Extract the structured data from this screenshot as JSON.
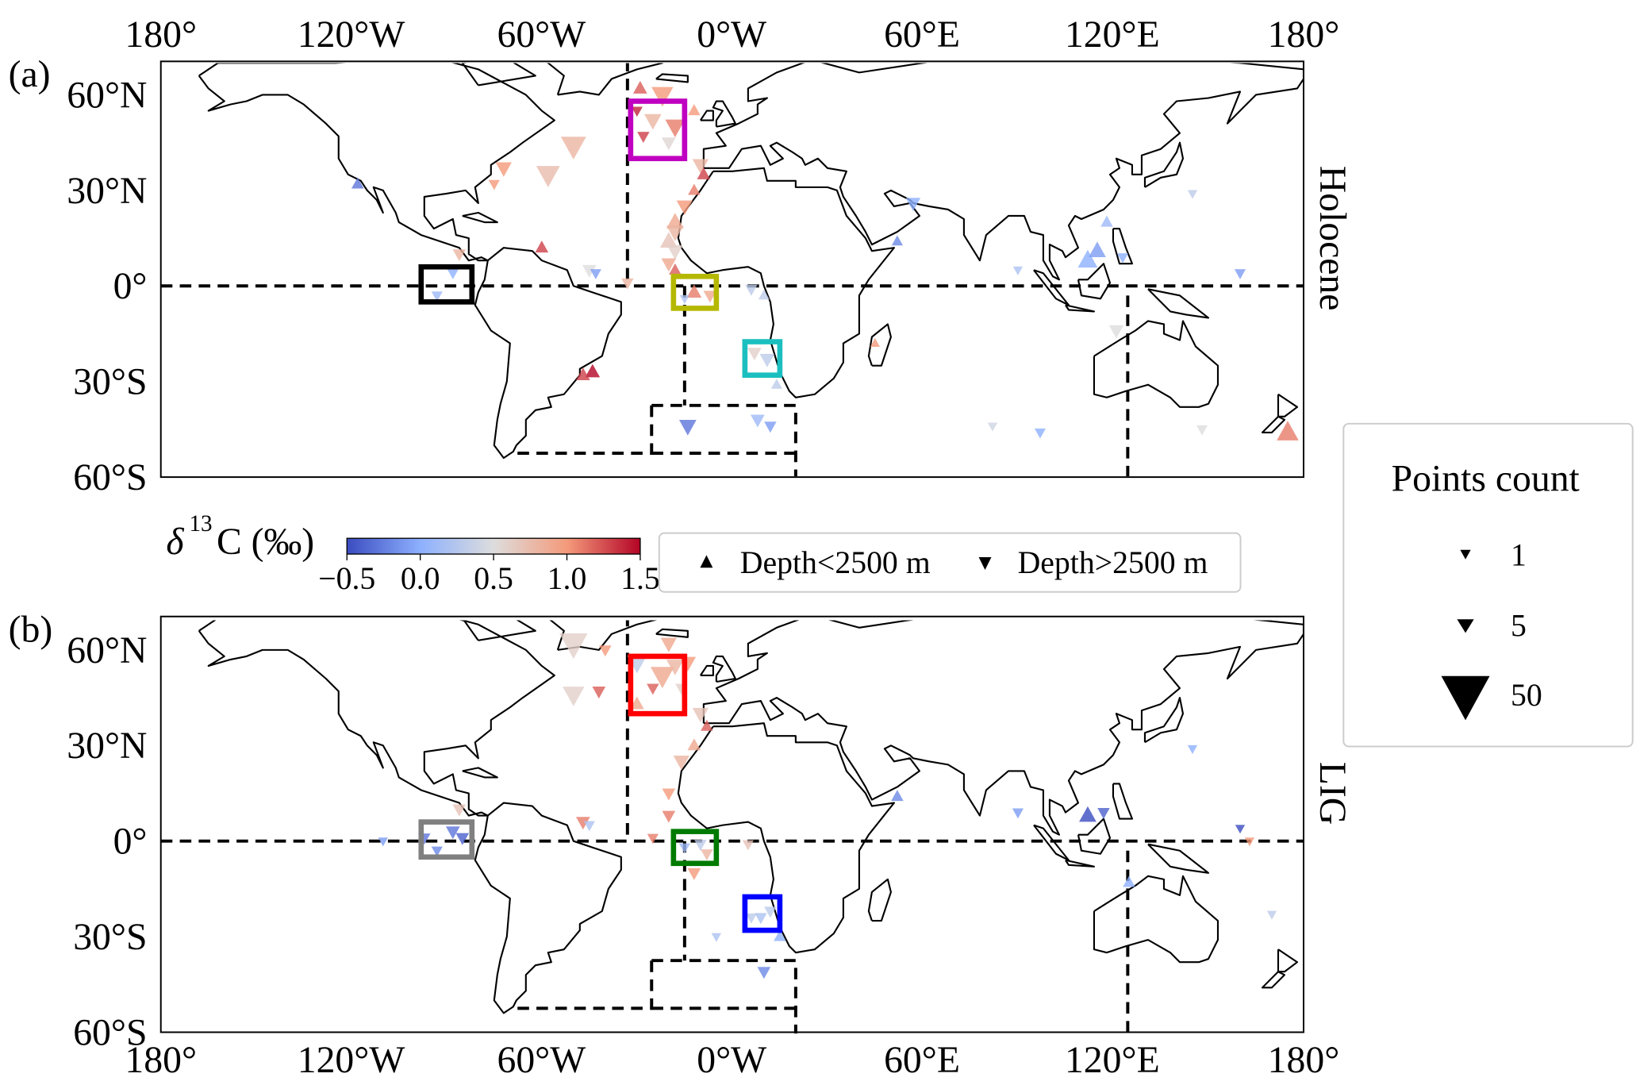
{
  "chart_data": [
    {
      "type": "scatter",
      "panel_label": "(a)",
      "title": "Holocene",
      "projection": "PlateCarree",
      "xlim": [
        -180,
        180
      ],
      "ylim": [
        -60,
        70
      ],
      "xticks": [
        "180°",
        "120°W",
        "60°W",
        "0°W",
        "60°E",
        "120°E",
        "180°"
      ],
      "yticks": [
        "60°N",
        "30°N",
        "0°",
        "30°S",
        "60°S"
      ],
      "columns": [
        "lon",
        "lat",
        "d13C",
        "depth",
        "count"
      ],
      "points": [
        [
          -29,
          62,
          1.2,
          "shallow",
          5
        ],
        [
          -22,
          60,
          1.0,
          "deep",
          20
        ],
        [
          -25,
          52,
          0.8,
          "deep",
          10
        ],
        [
          -18,
          50,
          1.1,
          "deep",
          15
        ],
        [
          -28,
          47,
          1.3,
          "deep",
          3
        ],
        [
          -20,
          45,
          0.55,
          "deep",
          5
        ],
        [
          -12,
          55,
          1.0,
          "shallow",
          3
        ],
        [
          -30,
          55,
          1.4,
          "deep",
          2
        ],
        [
          -50,
          44,
          0.8,
          "deep",
          30
        ],
        [
          -58,
          35,
          0.75,
          "deep",
          25
        ],
        [
          -72,
          37,
          1.0,
          "deep",
          8
        ],
        [
          -75,
          32,
          1.0,
          "deep",
          2
        ],
        [
          -10,
          38,
          0.8,
          "deep",
          8
        ],
        [
          -9,
          35,
          1.3,
          "shallow",
          4
        ],
        [
          -12,
          30,
          1.1,
          "shallow",
          3
        ],
        [
          -15,
          25,
          1.0,
          "deep",
          8
        ],
        [
          -18,
          20,
          0.9,
          "shallow",
          10
        ],
        [
          -18,
          17,
          0.8,
          "deep",
          10
        ],
        [
          -20,
          14,
          0.7,
          "shallow",
          10
        ],
        [
          -18,
          11,
          0.6,
          "deep",
          8
        ],
        [
          -20,
          7,
          0.9,
          "deep",
          6
        ],
        [
          -18,
          5,
          1.2,
          "shallow",
          3
        ],
        [
          -86,
          10,
          0.8,
          "deep",
          4
        ],
        [
          -60,
          12,
          1.3,
          "shallow",
          4
        ],
        [
          -45,
          5,
          0.5,
          "deep",
          5
        ],
        [
          -43,
          4,
          -0.1,
          "deep",
          2
        ],
        [
          -33,
          1,
          0.8,
          "deep",
          3
        ],
        [
          -88,
          4,
          0.0,
          "deep",
          2
        ],
        [
          -93,
          -3,
          0.1,
          "deep",
          2
        ],
        [
          -12,
          -2,
          1.1,
          "shallow",
          6
        ],
        [
          -7,
          -3,
          0.9,
          "deep",
          4
        ],
        [
          -15,
          -4,
          0.2,
          "deep",
          1
        ],
        [
          6,
          -1,
          0.3,
          "deep",
          3
        ],
        [
          10,
          -3,
          0.3,
          "shallow",
          2
        ],
        [
          7,
          -21,
          0.6,
          "deep",
          5
        ],
        [
          11,
          -23,
          0.3,
          "deep",
          6
        ],
        [
          14,
          -31,
          0.3,
          "shallow",
          2
        ],
        [
          -44,
          -27,
          1.5,
          "shallow",
          6
        ],
        [
          -47,
          -28,
          1.3,
          "shallow",
          5
        ],
        [
          -14,
          -44,
          -0.3,
          "deep",
          10
        ],
        [
          8,
          -42,
          0.1,
          "deep",
          5
        ],
        [
          12,
          -44,
          -0.1,
          "deep",
          3
        ],
        [
          -118,
          32,
          -0.3,
          "shallow",
          3
        ],
        [
          57,
          26,
          0.0,
          "deep",
          6
        ],
        [
          52,
          14,
          -0.2,
          "shallow",
          2
        ],
        [
          90,
          5,
          0.2,
          "deep",
          1
        ],
        [
          112,
          8,
          0.0,
          "shallow",
          15
        ],
        [
          115,
          11,
          -0.1,
          "shallow",
          10
        ],
        [
          118,
          20,
          0.1,
          "shallow",
          3
        ],
        [
          123,
          9,
          0.0,
          "deep",
          2
        ],
        [
          145,
          29,
          0.3,
          "deep",
          1
        ],
        [
          160,
          4,
          -0.1,
          "deep",
          2
        ],
        [
          121,
          -14,
          0.5,
          "deep",
          6
        ],
        [
          82,
          -44,
          0.4,
          "deep",
          1
        ],
        [
          97,
          -46,
          0.0,
          "deep",
          2
        ],
        [
          148,
          -45,
          0.5,
          "deep",
          2
        ],
        [
          175,
          -46,
          1.1,
          "shallow",
          20
        ],
        [
          45,
          -18,
          1.0,
          "shallow",
          1
        ]
      ],
      "boxes": [
        {
          "lon": [
            -32,
            -15
          ],
          "lat": [
            40,
            58
          ],
          "color": "#c000c0"
        },
        {
          "lon": [
            -98,
            -82
          ],
          "lat": [
            -5,
            6
          ],
          "color": "#000000"
        },
        {
          "lon": [
            -18.5,
            -5
          ],
          "lat": [
            -7,
            3
          ],
          "color": "#b5b800"
        },
        {
          "lon": [
            4,
            15
          ],
          "lat": [
            -28,
            -17.5
          ],
          "color": "#1cbfbf"
        }
      ]
    },
    {
      "type": "scatter",
      "panel_label": "(b)",
      "title": "LIG",
      "projection": "PlateCarree",
      "xlim": [
        -180,
        180
      ],
      "ylim": [
        -60,
        70
      ],
      "xticks": [
        "180°",
        "120°W",
        "60°W",
        "0°W",
        "60°E",
        "120°E",
        "180°"
      ],
      "yticks": [
        "60°N",
        "30°N",
        "0°",
        "30°S",
        "60°S"
      ],
      "columns": [
        "lon",
        "lat",
        "d13C",
        "depth",
        "count"
      ],
      "points": [
        [
          -50,
          62,
          0.6,
          "deep",
          40
        ],
        [
          -40,
          60,
          1.0,
          "deep",
          3
        ],
        [
          -30,
          56,
          0.3,
          "deep",
          15
        ],
        [
          -50,
          46,
          0.6,
          "deep",
          20
        ],
        [
          -42,
          47,
          1.2,
          "deep",
          4
        ],
        [
          -22,
          52,
          0.9,
          "deep",
          25
        ],
        [
          -18,
          55,
          0.8,
          "deep",
          10
        ],
        [
          -25,
          48,
          1.2,
          "deep",
          3
        ],
        [
          -16,
          48,
          0.6,
          "deep",
          3
        ],
        [
          -14,
          56,
          1.0,
          "deep",
          8
        ],
        [
          -20,
          62,
          0.9,
          "deep",
          8
        ],
        [
          -30,
          43,
          0.9,
          "shallow",
          5
        ],
        [
          -10,
          40,
          0.7,
          "deep",
          8
        ],
        [
          -8,
          36,
          1.2,
          "shallow",
          3
        ],
        [
          -12,
          30,
          0.9,
          "shallow",
          4
        ],
        [
          -16,
          25,
          0.8,
          "deep",
          8
        ],
        [
          -20,
          15,
          1.0,
          "deep",
          4
        ],
        [
          -20,
          8,
          1.1,
          "deep",
          4
        ],
        [
          -25,
          1,
          1.1,
          "deep",
          2
        ],
        [
          -86,
          10,
          0.7,
          "deep",
          4
        ],
        [
          -47,
          6,
          1.1,
          "deep",
          5
        ],
        [
          -45,
          5,
          0.2,
          "deep",
          2
        ],
        [
          -97,
          1,
          -0.3,
          "deep",
          3
        ],
        [
          -88,
          3,
          -0.3,
          "deep",
          5
        ],
        [
          -85,
          1,
          -0.4,
          "deep",
          4
        ],
        [
          -93,
          -3,
          -0.2,
          "deep",
          2
        ],
        [
          -110,
          0,
          -0.1,
          "deep",
          1
        ],
        [
          -15,
          -2,
          0.1,
          "deep",
          2
        ],
        [
          -10,
          -1,
          0.3,
          "deep",
          3
        ],
        [
          -8,
          -4,
          0.8,
          "deep",
          3
        ],
        [
          -12,
          -10,
          1.0,
          "deep",
          4
        ],
        [
          5,
          -1,
          0.7,
          "deep",
          2
        ],
        [
          6,
          -24,
          0.3,
          "deep",
          2
        ],
        [
          9,
          -24,
          0.2,
          "deep",
          3
        ],
        [
          12,
          -22,
          0.3,
          "deep",
          3
        ],
        [
          15,
          -30,
          0.0,
          "shallow",
          3
        ],
        [
          -5,
          -30,
          0.2,
          "deep",
          1
        ],
        [
          10,
          -41,
          -0.2,
          "deep",
          4
        ],
        [
          52,
          14,
          -0.2,
          "shallow",
          3
        ],
        [
          90,
          9,
          -0.1,
          "deep",
          2
        ],
        [
          112,
          8,
          -0.5,
          "shallow",
          10
        ],
        [
          117,
          9,
          -0.4,
          "deep",
          3
        ],
        [
          160,
          4,
          -0.5,
          "deep",
          1
        ],
        [
          163,
          0,
          1.0,
          "deep",
          1
        ],
        [
          125,
          -13,
          0.0,
          "shallow",
          3
        ],
        [
          145,
          29,
          0.0,
          "deep",
          1
        ],
        [
          170,
          -23,
          0.3,
          "deep",
          1
        ]
      ],
      "boxes": [
        {
          "lon": [
            -32,
            -15
          ],
          "lat": [
            40,
            58
          ],
          "color": "#ff0000"
        },
        {
          "lon": [
            -98,
            -82
          ],
          "lat": [
            -5,
            6
          ],
          "color": "#808080"
        },
        {
          "lon": [
            -18.5,
            -5
          ],
          "lat": [
            -7,
            3
          ],
          "color": "#007a00"
        },
        {
          "lon": [
            4,
            15
          ],
          "lat": [
            -28,
            -17.5
          ],
          "color": "#0000ff"
        }
      ]
    }
  ],
  "colorbar": {
    "label_main": "δ",
    "label_sup": "13",
    "label_rest": "C (‰)",
    "range": [
      -0.5,
      1.5
    ],
    "ticks": [
      "−0.5",
      "0.0",
      "0.5",
      "1.0",
      "1.5"
    ],
    "colormap": [
      "#3b4cc0",
      "#8db0fe",
      "#dddddd",
      "#f49a7b",
      "#b40426"
    ]
  },
  "marker_legend": {
    "shallow_label": "Depth<2500 m",
    "deep_label": "Depth>2500 m"
  },
  "size_legend": {
    "title": "Points count",
    "counts": [
      "1",
      "5",
      "50"
    ]
  }
}
